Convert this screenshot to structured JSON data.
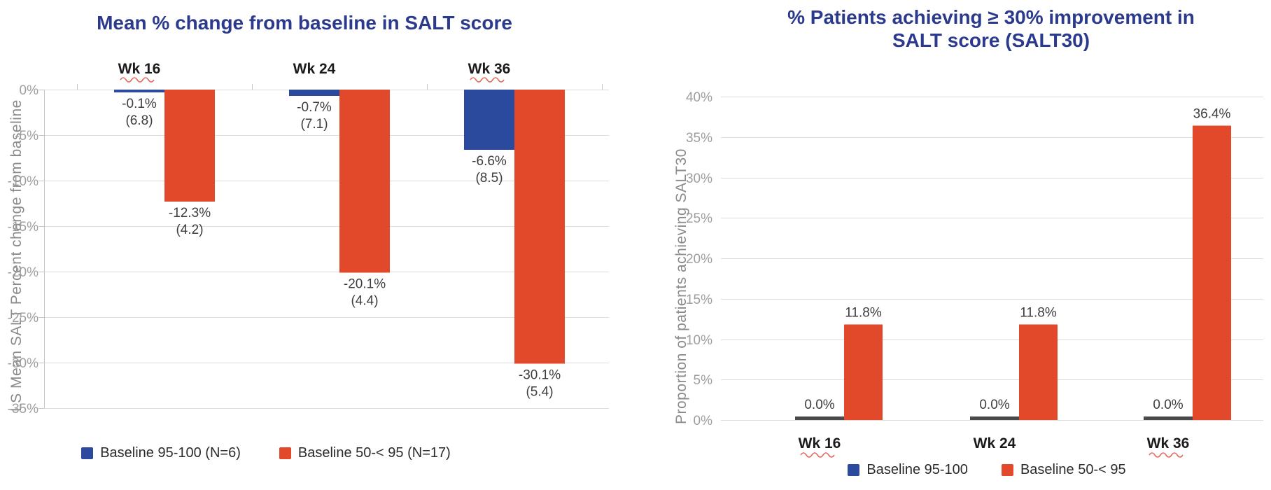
{
  "colors": {
    "series_blue": "#2C4A9D",
    "series_red": "#E2492B",
    "title_navy": "#2B3A8C",
    "tick_gray": "#9E9E9E",
    "grid_gray": "#DCDCDC",
    "axis_gray": "#C4C4C4",
    "data_label": "#3D3D3D",
    "category_black": "#1B1B1B",
    "legend_text": "#2B2B2B",
    "zero_bar_dark": "#4A4A4A",
    "squiggle_red": "#E25549"
  },
  "chart_data": [
    {
      "type": "bar",
      "title": "Mean % change from baseline in SALT score",
      "ylabel": "LS Mean SALT Percent change from baseline",
      "categories": [
        "Wk 16",
        "Wk 24",
        "Wk 36"
      ],
      "category_squiggle": [
        true,
        false,
        true
      ],
      "category_label_position": "top",
      "data_label_position": "below-bar",
      "ylim": [
        0,
        -35
      ],
      "yticks": [
        "0%",
        "-5%",
        "-10%",
        "-15%",
        "-20%",
        "-25%",
        "-30%",
        "-35%"
      ],
      "grid": true,
      "legend_position": "bottom",
      "series": [
        {
          "name": "Baseline 95-100 (N=6)",
          "color_key": "series_blue",
          "values": [
            -0.1,
            -0.7,
            -6.6
          ],
          "data_labels": [
            "-0.1%\n(6.8)",
            "-0.7%\n(7.1)",
            "-6.6%\n(8.5)"
          ]
        },
        {
          "name": "Baseline 50-< 95 (N=17)",
          "color_key": "series_red",
          "values": [
            -12.3,
            -20.1,
            -30.1
          ],
          "data_labels": [
            "-12.3%\n(4.2)",
            "-20.1%\n(4.4)",
            "-30.1%\n(5.4)"
          ]
        }
      ]
    },
    {
      "type": "bar",
      "title": "% Patients achieving ≥ 30% improvement in\nSALT score (SALT30)",
      "ylabel": "Proportion of patients achieving SALT30",
      "categories": [
        "Wk 16",
        "Wk 24",
        "Wk 36"
      ],
      "category_squiggle": [
        true,
        false,
        true
      ],
      "category_label_position": "bottom",
      "data_label_position": "above-bar",
      "ylim": [
        0,
        40
      ],
      "yticks": [
        "0%",
        "5%",
        "10%",
        "15%",
        "20%",
        "25%",
        "30%",
        "35%",
        "40%"
      ],
      "grid": true,
      "legend_position": "bottom",
      "series": [
        {
          "name": "Baseline 95-100",
          "color_key": "series_blue",
          "values": [
            0.0,
            0.0,
            0.0
          ],
          "data_labels": [
            "0.0%",
            "0.0%",
            "0.0%"
          ],
          "zero_rendered_as_dark_tick": true
        },
        {
          "name": "Baseline 50-< 95",
          "color_key": "series_red",
          "values": [
            11.8,
            11.8,
            36.4
          ],
          "data_labels": [
            "11.8%",
            "11.8%",
            "36.4%"
          ]
        }
      ]
    }
  ]
}
